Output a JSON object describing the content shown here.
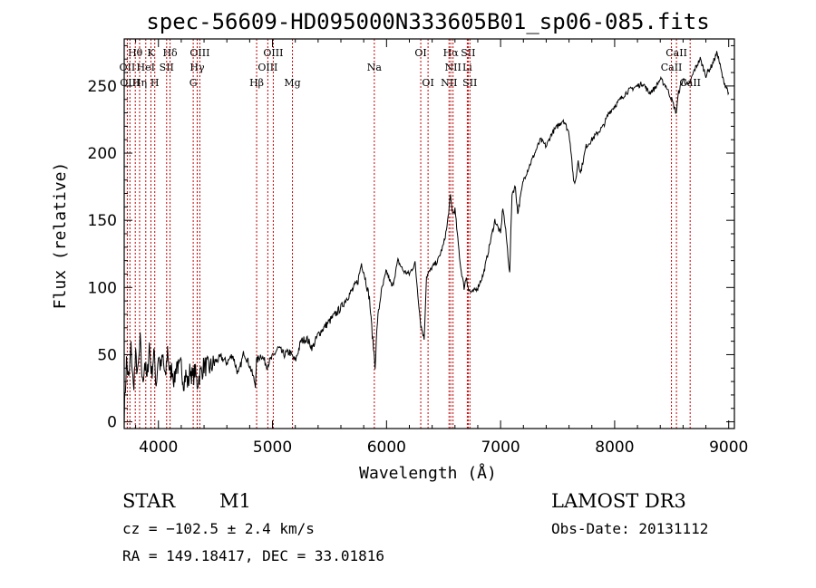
{
  "chart_data": {
    "type": "line",
    "title": "spec-56609-HD095000N333605B01_sp06-085.fits",
    "xlabel": "Wavelength (Å)",
    "ylabel": "Flux (relative)",
    "xlim": [
      3700,
      9050
    ],
    "ylim": [
      -5,
      285
    ],
    "xticks": [
      4000,
      5000,
      6000,
      7000,
      8000,
      9000
    ],
    "yticks": [
      0,
      50,
      100,
      150,
      200,
      250
    ],
    "grid": false,
    "series": [
      {
        "name": "flux",
        "x": [
          3700,
          3720,
          3740,
          3760,
          3780,
          3800,
          3820,
          3840,
          3860,
          3880,
          3900,
          3920,
          3940,
          3960,
          3980,
          4000,
          4020,
          4040,
          4060,
          4080,
          4100,
          4120,
          4140,
          4160,
          4180,
          4200,
          4220,
          4240,
          4260,
          4280,
          4300,
          4320,
          4340,
          4360,
          4380,
          4400,
          4450,
          4500,
          4550,
          4600,
          4650,
          4700,
          4750,
          4800,
          4850,
          4860,
          4900,
          4950,
          5000,
          5050,
          5100,
          5150,
          5200,
          5250,
          5300,
          5350,
          5400,
          5450,
          5500,
          5550,
          5600,
          5650,
          5700,
          5750,
          5780,
          5800,
          5850,
          5880,
          5900,
          5920,
          5950,
          6000,
          6050,
          6100,
          6150,
          6200,
          6250,
          6300,
          6330,
          6350,
          6400,
          6450,
          6500,
          6530,
          6560,
          6580,
          6600,
          6620,
          6650,
          6680,
          6700,
          6720,
          6750,
          6800,
          6850,
          6900,
          6950,
          7000,
          7020,
          7050,
          7080,
          7100,
          7130,
          7150,
          7200,
          7250,
          7300,
          7350,
          7400,
          7450,
          7500,
          7550,
          7600,
          7620,
          7640,
          7660,
          7680,
          7700,
          7750,
          7800,
          7850,
          7900,
          7950,
          8000,
          8050,
          8100,
          8150,
          8200,
          8250,
          8300,
          8350,
          8400,
          8450,
          8500,
          8520,
          8540,
          8560,
          8600,
          8650,
          8700,
          8750,
          8800,
          8850,
          8900,
          8950,
          9000
        ],
        "y": [
          5,
          45,
          30,
          55,
          25,
          48,
          35,
          60,
          28,
          45,
          30,
          58,
          35,
          52,
          28,
          50,
          40,
          48,
          30,
          55,
          35,
          40,
          30,
          45,
          38,
          42,
          30,
          35,
          28,
          40,
          32,
          38,
          28,
          35,
          38,
          42,
          40,
          45,
          48,
          44,
          50,
          35,
          52,
          42,
          28,
          45,
          50,
          42,
          48,
          55,
          50,
          52,
          45,
          60,
          62,
          55,
          65,
          70,
          75,
          80,
          85,
          92,
          98,
          105,
          118,
          112,
          92,
          60,
          42,
          75,
          95,
          112,
          100,
          120,
          112,
          110,
          118,
          72,
          62,
          108,
          115,
          120,
          132,
          145,
          168,
          155,
          158,
          140,
          115,
          100,
          108,
          98,
          96,
          100,
          110,
          130,
          150,
          140,
          160,
          138,
          110,
          170,
          175,
          155,
          180,
          190,
          200,
          210,
          205,
          215,
          220,
          225,
          215,
          200,
          178,
          180,
          195,
          185,
          205,
          210,
          215,
          220,
          230,
          235,
          240,
          245,
          248,
          250,
          252,
          245,
          248,
          255,
          250,
          240,
          235,
          230,
          245,
          255,
          250,
          262,
          270,
          258,
          265,
          275,
          255,
          245
        ]
      }
    ],
    "spectral_lines": [
      {
        "label": "Hθ",
        "x": 3797,
        "row": 1
      },
      {
        "label": "K",
        "x": 3934,
        "row": 1
      },
      {
        "label": "Hδ",
        "x": 4102,
        "row": 1
      },
      {
        "label": "OIII",
        "x": 4363,
        "row": 1
      },
      {
        "label": "OIII",
        "x": 5007,
        "row": 1
      },
      {
        "label": "OI",
        "x": 6300,
        "row": 1
      },
      {
        "label": "Hα",
        "x": 6563,
        "row": 1
      },
      {
        "label": "SII",
        "x": 6716,
        "row": 1
      },
      {
        "label": "CaII",
        "x": 8542,
        "row": 1
      },
      {
        "label": "OII",
        "x": 3727,
        "row": 2
      },
      {
        "label": "HeI",
        "x": 3889,
        "row": 2
      },
      {
        "label": "SII",
        "x": 4072,
        "row": 2
      },
      {
        "label": "Hγ",
        "x": 4340,
        "row": 2
      },
      {
        "label": "OIII",
        "x": 4959,
        "row": 2
      },
      {
        "label": "Na",
        "x": 5893,
        "row": 2
      },
      {
        "label": "NII",
        "x": 6583,
        "row": 2
      },
      {
        "label": "Li",
        "x": 6708,
        "row": 2
      },
      {
        "label": "CaII",
        "x": 8498,
        "row": 2
      },
      {
        "label": "OIII",
        "x": 3750,
        "row": 3
      },
      {
        "label": "Hη",
        "x": 3835,
        "row": 3
      },
      {
        "label": "H",
        "x": 3968,
        "row": 3
      },
      {
        "label": "G",
        "x": 4305,
        "row": 3
      },
      {
        "label": "Hβ",
        "x": 4861,
        "row": 3
      },
      {
        "label": "Mg",
        "x": 5175,
        "row": 3
      },
      {
        "label": "OI",
        "x": 6364,
        "row": 3
      },
      {
        "label": "NII",
        "x": 6548,
        "row": 3
      },
      {
        "label": "SII",
        "x": 6731,
        "row": 3
      },
      {
        "label": "CaII",
        "x": 8662,
        "row": 3
      }
    ]
  },
  "info": {
    "object_class": "STAR",
    "subclass": "M1",
    "survey": "LAMOST DR3",
    "cz": "cz = −102.5 ± 2.4 km/s",
    "obs_date": "Obs-Date: 20131112",
    "coords": "RA = 149.18417, DEC =  33.01816"
  },
  "colors": {
    "line": "#000000",
    "marker": "#c00000",
    "axis": "#000000"
  }
}
